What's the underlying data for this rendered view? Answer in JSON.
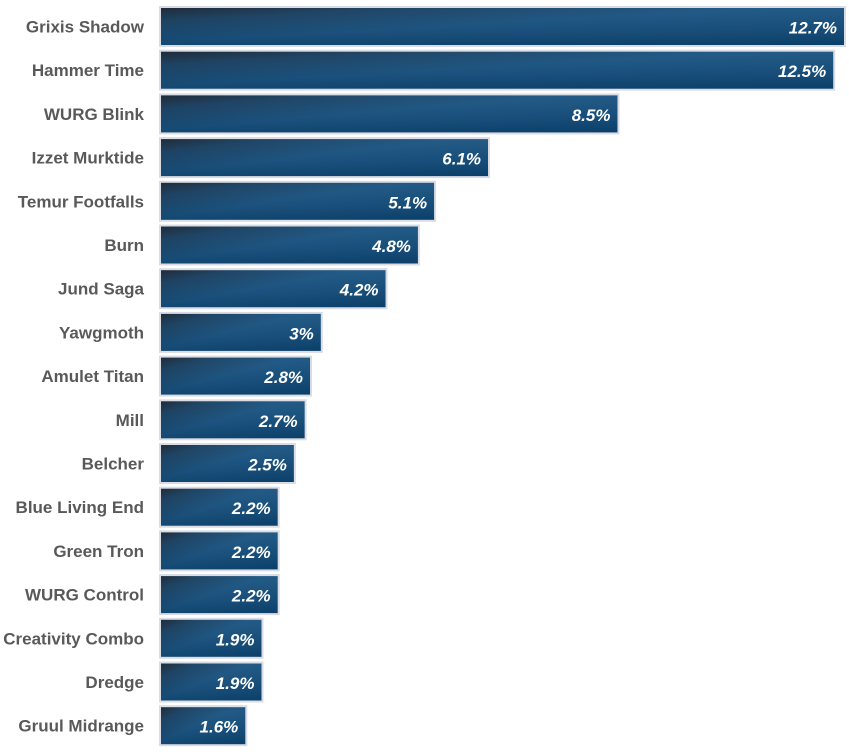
{
  "chart_data": {
    "type": "bar",
    "orientation": "horizontal",
    "title": "",
    "xlabel": "",
    "ylabel": "",
    "value_suffix": "%",
    "xlim": [
      0,
      12.7
    ],
    "grid": false,
    "legend": "none",
    "colors": {
      "bar_dark": "#0f2036",
      "bar_mid": "#14507e",
      "bar_light": "#0c4a7a",
      "label_text": "#595959",
      "value_text": "#ffffff"
    },
    "categories": [
      "Grixis Shadow",
      "Hammer Time",
      "WURG Blink",
      "Izzet Murktide",
      "Temur Footfalls",
      "Burn",
      "Jund Saga",
      "Yawgmoth",
      "Amulet Titan",
      "Mill",
      "Belcher",
      "Blue Living End",
      "Green Tron",
      "WURG Control",
      "Creativity Combo",
      "Dredge",
      "Gruul Midrange"
    ],
    "values": [
      12.7,
      12.5,
      8.5,
      6.1,
      5.1,
      4.8,
      4.2,
      3,
      2.8,
      2.7,
      2.5,
      2.2,
      2.2,
      2.2,
      1.9,
      1.9,
      1.6
    ],
    "value_labels": [
      "12.7%",
      "12.5%",
      "8.5%",
      "6.1%",
      "5.1%",
      "4.8%",
      "4.2%",
      "3%",
      "2.8%",
      "2.7%",
      "2.5%",
      "2.2%",
      "2.2%",
      "2.2%",
      "1.9%",
      "1.9%",
      "1.6%"
    ]
  }
}
